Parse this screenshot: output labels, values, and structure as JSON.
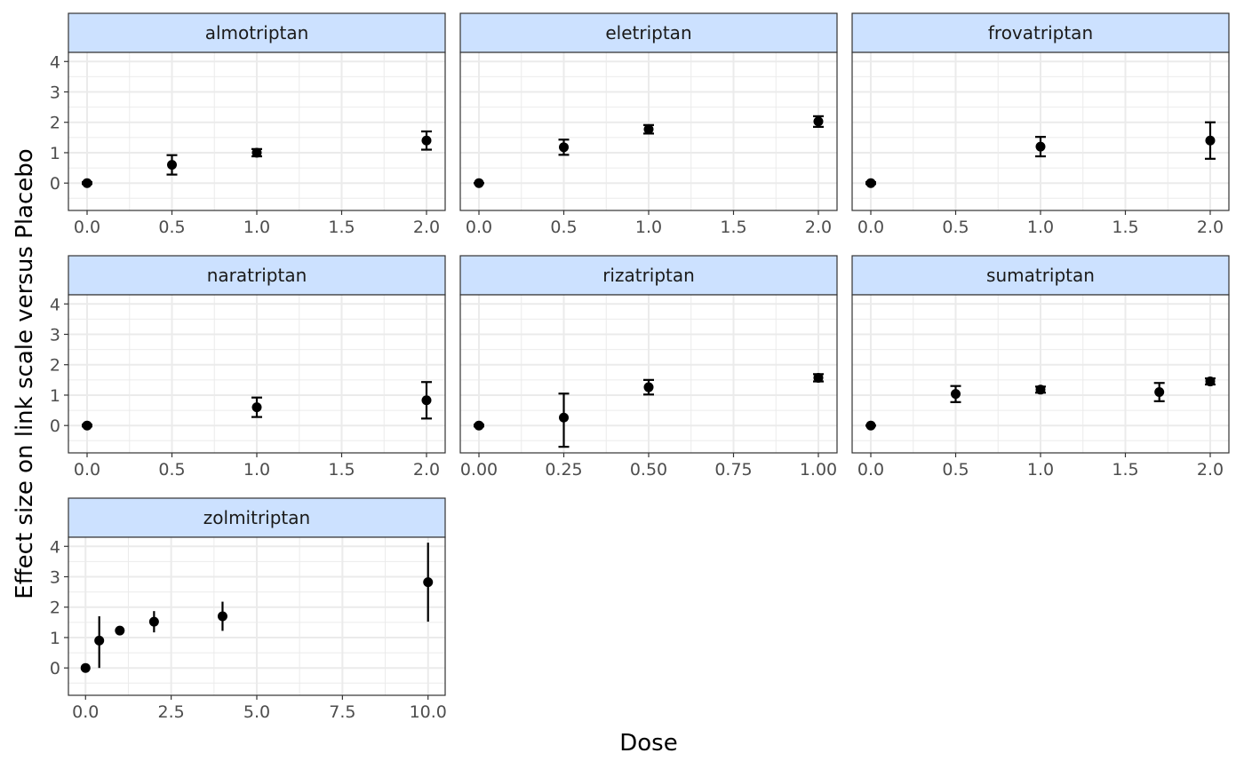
{
  "chart_data": {
    "type": "scatter",
    "style": "faceted point estimates with error bars",
    "xlabel": "Dose",
    "ylabel": "Effect size on link scale versus Placebo",
    "ylim": [
      -0.9,
      4.3
    ],
    "y_ticks": [
      "0",
      "1",
      "2",
      "3",
      "4"
    ],
    "grid": true,
    "colors": {
      "strip_fill": "#cce1ff",
      "point": "#000000",
      "grid": "#ebebeb",
      "panel_border": "#333333"
    },
    "facets": [
      {
        "name": "almotriptan",
        "xlim": [
          -0.11,
          2.11
        ],
        "x_ticks": [
          "0.0",
          "0.5",
          "1.0",
          "1.5",
          "2.0"
        ],
        "x_tick_values": [
          0,
          0.5,
          1,
          1.5,
          2
        ],
        "points": [
          {
            "x": 0,
            "y": 0,
            "lo": -0.03,
            "hi": 0.03
          },
          {
            "x": 0.5,
            "y": 0.6,
            "lo": 0.28,
            "hi": 0.92
          },
          {
            "x": 1.0,
            "y": 1.0,
            "lo": 0.88,
            "hi": 1.12
          },
          {
            "x": 2.0,
            "y": 1.4,
            "lo": 1.1,
            "hi": 1.7
          }
        ]
      },
      {
        "name": "eletriptan",
        "xlim": [
          -0.11,
          2.11
        ],
        "x_ticks": [
          "0.0",
          "0.5",
          "1.0",
          "1.5",
          "2.0"
        ],
        "x_tick_values": [
          0,
          0.5,
          1,
          1.5,
          2
        ],
        "points": [
          {
            "x": 0,
            "y": 0,
            "lo": 0,
            "hi": 0
          },
          {
            "x": 0.5,
            "y": 1.18,
            "lo": 0.93,
            "hi": 1.43
          },
          {
            "x": 1.0,
            "y": 1.77,
            "lo": 1.63,
            "hi": 1.91
          },
          {
            "x": 2.0,
            "y": 2.03,
            "lo": 1.85,
            "hi": 2.2
          }
        ]
      },
      {
        "name": "frovatriptan",
        "xlim": [
          -0.11,
          2.11
        ],
        "x_ticks": [
          "0.0",
          "0.5",
          "1.0",
          "1.5",
          "2.0"
        ],
        "x_tick_values": [
          0,
          0.5,
          1,
          1.5,
          2
        ],
        "points": [
          {
            "x": 0,
            "y": 0,
            "lo": -0.03,
            "hi": 0.03
          },
          {
            "x": 1.0,
            "y": 1.2,
            "lo": 0.88,
            "hi": 1.52
          },
          {
            "x": 2.0,
            "y": 1.4,
            "lo": 0.8,
            "hi": 2.0
          }
        ]
      },
      {
        "name": "naratriptan",
        "xlim": [
          -0.11,
          2.11
        ],
        "x_ticks": [
          "0.0",
          "0.5",
          "1.0",
          "1.5",
          "2.0"
        ],
        "x_tick_values": [
          0,
          0.5,
          1,
          1.5,
          2
        ],
        "points": [
          {
            "x": 0,
            "y": 0,
            "lo": -0.03,
            "hi": 0.03
          },
          {
            "x": 1.0,
            "y": 0.6,
            "lo": 0.28,
            "hi": 0.92
          },
          {
            "x": 2.0,
            "y": 0.83,
            "lo": 0.23,
            "hi": 1.43
          }
        ]
      },
      {
        "name": "rizatriptan",
        "xlim": [
          -0.055,
          1.055
        ],
        "x_ticks": [
          "0.00",
          "0.25",
          "0.50",
          "0.75",
          "1.00"
        ],
        "x_tick_values": [
          0,
          0.25,
          0.5,
          0.75,
          1
        ],
        "points": [
          {
            "x": 0,
            "y": 0,
            "lo": -0.03,
            "hi": 0.03
          },
          {
            "x": 0.25,
            "y": 0.26,
            "lo": -0.7,
            "hi": 1.05
          },
          {
            "x": 0.5,
            "y": 1.26,
            "lo": 1.02,
            "hi": 1.5
          },
          {
            "x": 1.0,
            "y": 1.57,
            "lo": 1.45,
            "hi": 1.69
          }
        ]
      },
      {
        "name": "sumatriptan",
        "xlim": [
          -0.11,
          2.11
        ],
        "x_ticks": [
          "0.0",
          "0.5",
          "1.0",
          "1.5",
          "2.0"
        ],
        "x_tick_values": [
          0,
          0.5,
          1,
          1.5,
          2
        ],
        "points": [
          {
            "x": 0,
            "y": 0,
            "lo": 0,
            "hi": 0
          },
          {
            "x": 0.5,
            "y": 1.04,
            "lo": 0.77,
            "hi": 1.3
          },
          {
            "x": 1.0,
            "y": 1.18,
            "lo": 1.08,
            "hi": 1.28
          },
          {
            "x": 1.7,
            "y": 1.1,
            "lo": 0.8,
            "hi": 1.4
          },
          {
            "x": 2.0,
            "y": 1.45,
            "lo": 1.35,
            "hi": 1.55
          }
        ]
      },
      {
        "name": "zolmitriptan",
        "xlim": [
          -0.5,
          10.5
        ],
        "x_ticks": [
          "0.0",
          "2.5",
          "5.0",
          "7.5",
          "10.0"
        ],
        "x_tick_values": [
          0,
          2.5,
          5,
          7.5,
          10
        ],
        "points": [
          {
            "x": 0,
            "y": 0,
            "lo": -0.03,
            "hi": 0.03
          },
          {
            "x": 0.4,
            "y": 0.9,
            "lo": 0.0,
            "hi": 1.7
          },
          {
            "x": 1.0,
            "y": 1.23,
            "lo": 1.15,
            "hi": 1.31
          },
          {
            "x": 2.0,
            "y": 1.52,
            "lo": 1.17,
            "hi": 1.87
          },
          {
            "x": 4.0,
            "y": 1.7,
            "lo": 1.22,
            "hi": 2.18
          },
          {
            "x": 10.0,
            "y": 2.82,
            "lo": 1.52,
            "hi": 4.12
          }
        ]
      }
    ]
  }
}
